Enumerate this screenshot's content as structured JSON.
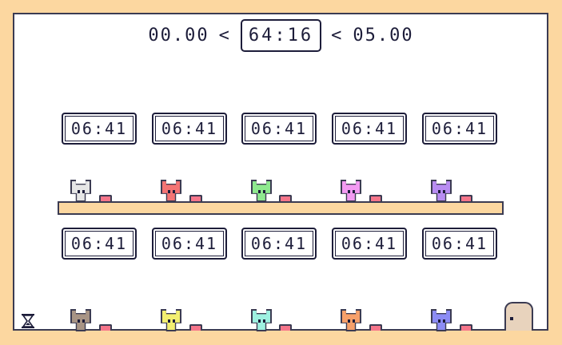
{
  "hud": {
    "left_time": "00.00",
    "current_time": "64:16",
    "right_time": "05.00",
    "left_sep": "<",
    "right_sep": "<"
  },
  "row1": {
    "clocks": [
      "06:41",
      "06:41",
      "06:41",
      "06:41",
      "06:41"
    ],
    "cats": [
      {
        "name": "white-cat",
        "color": "#e6e6e6"
      },
      {
        "name": "red-cat",
        "color": "#f47474"
      },
      {
        "name": "green-cat",
        "color": "#8ee98e"
      },
      {
        "name": "pink-cat",
        "color": "#f39af2"
      },
      {
        "name": "purple-cat",
        "color": "#b88cf2"
      }
    ]
  },
  "row2": {
    "clocks": [
      "06:41",
      "06:41",
      "06:41",
      "06:41",
      "06:41"
    ],
    "cats": [
      {
        "name": "brown-cat",
        "color": "#a89485"
      },
      {
        "name": "yellow-cat",
        "color": "#f3ef70"
      },
      {
        "name": "mint-cat",
        "color": "#9ef1e1"
      },
      {
        "name": "orange-cat",
        "color": "#f7a06a"
      },
      {
        "name": "blue-cat",
        "color": "#8c8cf5"
      }
    ]
  },
  "colors": {
    "background": "#fcd7a0",
    "stage": "#ffffff",
    "ink": "#1d1d3a",
    "button": "#f5758a",
    "door": "#e8d3bd"
  },
  "icons": [
    "hourglass-icon",
    "door-icon"
  ]
}
